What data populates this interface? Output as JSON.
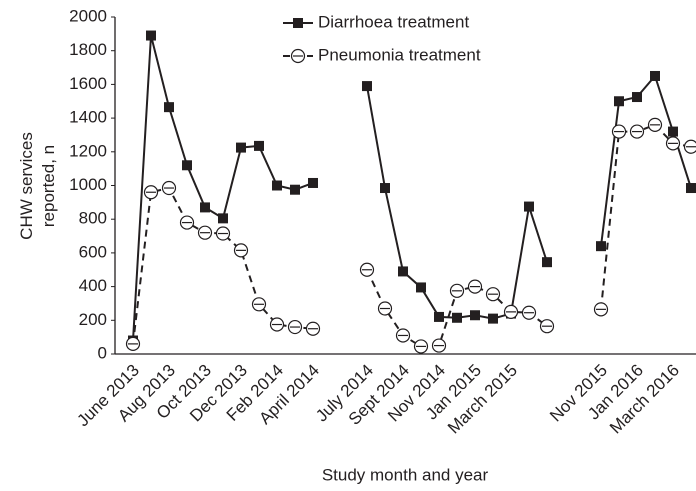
{
  "chart_data": {
    "type": "line",
    "x_label": "Study month and year",
    "y_label": [
      "CHW services",
      "reported, n"
    ],
    "categories": [
      "June 2013",
      null,
      "Aug 2013",
      null,
      "Oct 2013",
      null,
      "Dec 2013",
      null,
      "Feb 2014",
      null,
      "April 2014",
      null,
      null,
      "July 2014",
      null,
      "Sept 2014",
      null,
      "Nov 2014",
      null,
      "Jan 2015",
      null,
      "March 2015",
      null,
      null,
      null,
      null,
      "Nov 2015",
      null,
      "Jan 2016",
      null,
      "March 2016",
      null
    ],
    "series": [
      {
        "name": "Diarrhoea treatment",
        "color": "#231f20",
        "values": [
          80,
          1890,
          1465,
          1120,
          870,
          805,
          1225,
          1235,
          1000,
          975,
          1015,
          null,
          null,
          1590,
          985,
          490,
          395,
          220,
          215,
          230,
          210,
          240,
          875,
          545,
          null,
          null,
          640,
          1500,
          1525,
          1650,
          1320,
          985
        ]
      },
      {
        "name": "Pneumonia treatment",
        "color": "#231f20",
        "values": [
          60,
          960,
          985,
          780,
          720,
          715,
          615,
          295,
          175,
          160,
          150,
          null,
          null,
          500,
          270,
          110,
          45,
          50,
          375,
          400,
          355,
          250,
          245,
          165,
          null,
          null,
          265,
          1320,
          1320,
          1360,
          1250,
          1230
        ]
      }
    ],
    "ylim": [
      0,
      2000
    ],
    "yticks": [
      0,
      200,
      400,
      600,
      800,
      1000,
      1200,
      1400,
      1600,
      1800,
      2000
    ]
  }
}
